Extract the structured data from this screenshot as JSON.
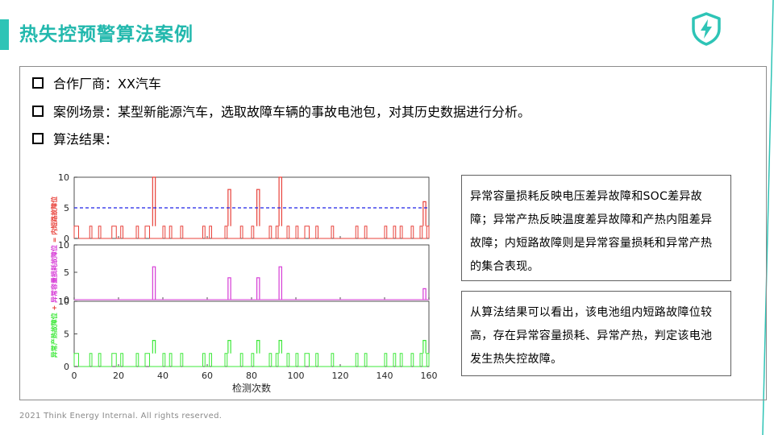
{
  "header": {
    "title": "热失控预警算法案例",
    "accent_color": "#2ec4b6",
    "logo_icon": "shield-lightning-icon"
  },
  "bullets": [
    {
      "label": "合作厂商：XX汽车"
    },
    {
      "label": "案例场景：某型新能源汽车，选取故障车辆的事故电池包，对其历史数据进行分析。"
    },
    {
      "label": "算法结果："
    }
  ],
  "chart_data": {
    "type": "line",
    "xlabel": "检测次数",
    "xlim": [
      0,
      160
    ],
    "xticks": [
      0,
      20,
      40,
      60,
      80,
      100,
      120,
      140,
      160
    ],
    "colors": {
      "internal_short": "#e8413a",
      "capacity_loss": "#d63cd6",
      "abnormal_heat": "#3ee83a",
      "threshold": "#1e22e6"
    },
    "panels": [
      {
        "name": "internal_short",
        "ylabel": "内短路故障位",
        "ylim": [
          0,
          10
        ],
        "yticks": [
          0,
          5,
          10
        ],
        "threshold": 5,
        "spikes": [
          {
            "x": 36,
            "y": 10
          },
          {
            "x": 70,
            "y": 8
          },
          {
            "x": 83,
            "y": 8
          },
          {
            "x": 93,
            "y": 10
          },
          {
            "x": 158,
            "y": 6
          }
        ],
        "base_level": 2
      },
      {
        "name": "capacity_loss",
        "ylabel": "异常容量损耗故障位",
        "ylim": [
          0,
          10
        ],
        "yticks": [
          0,
          5,
          10
        ],
        "spikes": [
          {
            "x": 36,
            "y": 6
          },
          {
            "x": 70,
            "y": 4
          },
          {
            "x": 83,
            "y": 4
          },
          {
            "x": 93,
            "y": 6
          },
          {
            "x": 158,
            "y": 2
          }
        ],
        "base_level": 0
      },
      {
        "name": "abnormal_heat",
        "ylabel": "异常产热故障位",
        "ylim": [
          0,
          10
        ],
        "yticks": [
          0,
          5,
          10
        ],
        "spikes": [
          {
            "x": 36,
            "y": 4
          },
          {
            "x": 70,
            "y": 4
          },
          {
            "x": 83,
            "y": 4
          },
          {
            "x": 93,
            "y": 4
          },
          {
            "x": 158,
            "y": 4
          }
        ],
        "base_level": 2
      }
    ],
    "ylabel_full": "异常产热故障位 + 异常容量损耗故障位 = 内短路故障位"
  },
  "notes": {
    "box1": "异常容量损耗反映电压差异故障和SOC差异故障；异常产热反映温度差异故障和产热内阻差异故障；内短路故障则是异常容量损耗和异常产热的集合表现。",
    "box2": "从算法结果可以看出，该电池组内短路故障位较高，存在异常容量损耗、异常产热，判定该电池发生热失控故障。"
  },
  "footer": {
    "copyright": "2021 Think Energy Internal. All rights reserved."
  }
}
